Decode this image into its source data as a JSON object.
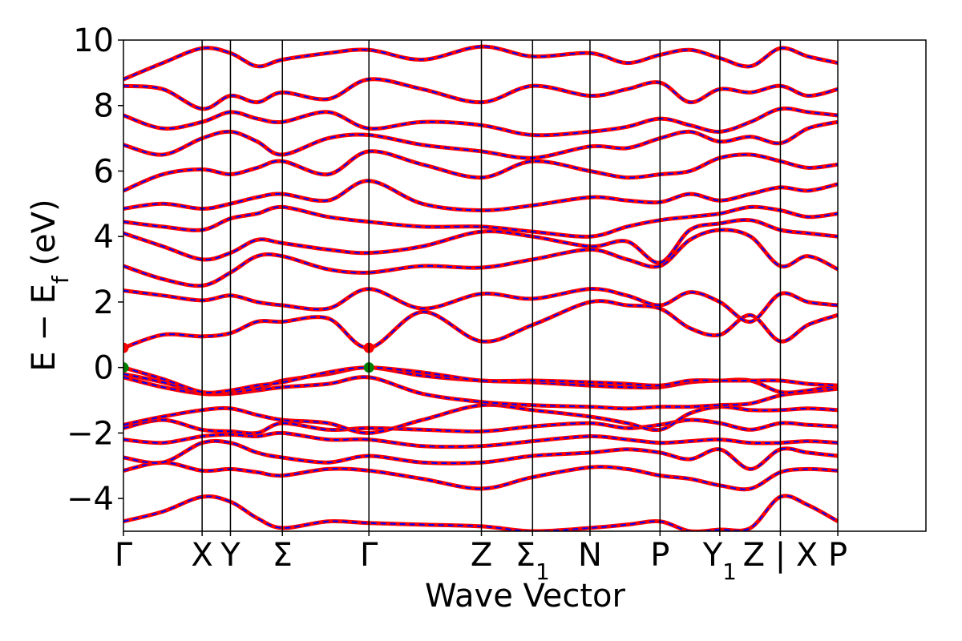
{
  "chart_data": {
    "type": "line",
    "title": "",
    "xlabel": "Wave Vector",
    "ylabel": "E − E",
    "ylabel_sub": "f",
    "ylabel_unit": " (eV)",
    "ylim": [
      -5,
      10
    ],
    "yticks": [
      -4,
      -2,
      0,
      2,
      4,
      6,
      8,
      10
    ],
    "ytick_labels": [
      "−4",
      "−2",
      "0",
      "2",
      "4",
      "6",
      "8",
      "10"
    ],
    "grid": false,
    "legend": "none",
    "path_length": 10.2,
    "kpoints": [
      {
        "label": "Γ",
        "sub": "",
        "pos": 0.0
      },
      {
        "label": "X",
        "sub": "",
        "pos": 1.0
      },
      {
        "label": "Y",
        "sub": "",
        "pos": 1.36
      },
      {
        "label": "Σ",
        "sub": "",
        "pos": 2.02
      },
      {
        "label": "Γ",
        "sub": "",
        "pos": 3.12
      },
      {
        "label": "Z",
        "sub": "",
        "pos": 4.55
      },
      {
        "label": "Σ",
        "sub": "1",
        "pos": 5.2
      },
      {
        "label": "N",
        "sub": "",
        "pos": 5.93
      },
      {
        "label": "P",
        "sub": "",
        "pos": 6.82
      },
      {
        "label": "Y",
        "sub": "1",
        "pos": 7.58
      },
      {
        "label": "Z | X",
        "sub": "",
        "pos": 8.35
      },
      {
        "label": "P",
        "sub": "",
        "pos": 9.08
      }
    ],
    "series": [
      {
        "color": "#ff0000",
        "style": "solid",
        "width": 5
      },
      {
        "color": "#0000ff",
        "style": "dashed",
        "width": 2
      }
    ],
    "band_x": [
      0,
      0.5,
      1.0,
      1.36,
      1.7,
      2.02,
      2.6,
      3.12,
      3.8,
      4.55,
      5.2,
      5.93,
      6.4,
      6.82,
      7.2,
      7.58,
      7.97,
      8.35,
      8.7,
      9.08
    ],
    "bands": [
      [
        -4.7,
        -4.4,
        -3.95,
        -4.1,
        -4.6,
        -4.9,
        -4.7,
        -4.75,
        -4.8,
        -4.85,
        -5.0,
        -4.9,
        -4.8,
        -4.7,
        -5.0,
        -4.95,
        -4.9,
        -3.95,
        -4.2,
        -4.7
      ],
      [
        -3.15,
        -2.9,
        -3.15,
        -3.1,
        -3.2,
        -3.3,
        -3.1,
        -3.15,
        -3.4,
        -3.7,
        -3.35,
        -3.05,
        -3.1,
        -3.3,
        -3.4,
        -3.6,
        -3.7,
        -3.2,
        -3.1,
        -3.15
      ],
      [
        -2.75,
        -2.9,
        -2.3,
        -2.3,
        -2.6,
        -2.75,
        -2.9,
        -2.7,
        -2.9,
        -2.9,
        -2.7,
        -2.6,
        -2.5,
        -2.6,
        -2.8,
        -2.5,
        -3.1,
        -2.5,
        -2.6,
        -2.7
      ],
      [
        -2.2,
        -2.3,
        -2.1,
        -2.05,
        -2.1,
        -2.0,
        -2.2,
        -2.2,
        -2.4,
        -2.4,
        -2.25,
        -2.1,
        -2.2,
        -2.3,
        -2.25,
        -2.2,
        -2.3,
        -2.3,
        -2.25,
        -2.3
      ],
      [
        -1.85,
        -1.6,
        -1.9,
        -1.95,
        -2.0,
        -1.7,
        -1.9,
        -1.85,
        -1.9,
        -1.95,
        -1.8,
        -1.7,
        -1.85,
        -1.75,
        -1.6,
        -1.7,
        -1.9,
        -1.7,
        -1.75,
        -1.8
      ],
      [
        -1.75,
        -1.5,
        -1.3,
        -1.25,
        -1.45,
        -1.6,
        -1.7,
        -2.0,
        -1.6,
        -1.15,
        -1.3,
        -1.5,
        -1.7,
        -1.9,
        -1.4,
        -1.2,
        -1.3,
        -1.3,
        -1.25,
        -1.3
      ],
      [
        -0.3,
        -0.6,
        -0.8,
        -0.8,
        -0.7,
        -0.6,
        -0.5,
        -0.3,
        -0.8,
        -1.05,
        -1.15,
        -1.2,
        -1.25,
        -1.2,
        -1.2,
        -1.15,
        -1.1,
        -0.85,
        -0.75,
        -0.65
      ],
      [
        -0.2,
        -0.45,
        -0.78,
        -0.75,
        -0.65,
        -0.4,
        -0.2,
        0.0,
        -0.25,
        -0.4,
        -0.45,
        -0.55,
        -0.6,
        -0.6,
        -0.45,
        -0.4,
        -0.4,
        -0.75,
        -0.7,
        -0.55
      ],
      [
        0.0,
        -0.35,
        -0.75,
        -0.7,
        -0.55,
        -0.45,
        -0.15,
        0.0,
        -0.15,
        -0.4,
        -0.4,
        -0.45,
        -0.5,
        -0.55,
        -0.4,
        -0.4,
        -0.4,
        -0.4,
        -0.5,
        -0.55
      ],
      [
        0.6,
        1.0,
        0.95,
        1.05,
        1.4,
        1.4,
        1.5,
        0.6,
        1.7,
        0.8,
        1.3,
        2.0,
        1.9,
        1.8,
        1.2,
        1.0,
        1.6,
        0.8,
        1.3,
        1.6
      ],
      [
        2.35,
        2.2,
        2.05,
        2.2,
        2.0,
        1.9,
        1.8,
        2.4,
        1.8,
        2.25,
        2.1,
        2.4,
        2.2,
        1.9,
        2.3,
        2.0,
        1.4,
        2.25,
        2.0,
        1.9
      ],
      [
        3.1,
        2.7,
        2.5,
        2.9,
        3.4,
        3.4,
        3.0,
        2.9,
        3.1,
        3.05,
        3.3,
        3.6,
        3.3,
        3.1,
        3.9,
        4.2,
        4.0,
        3.1,
        3.4,
        3.0
      ],
      [
        4.1,
        3.7,
        3.3,
        3.5,
        3.9,
        3.8,
        3.6,
        3.5,
        3.7,
        4.15,
        4.0,
        3.7,
        3.85,
        3.2,
        4.2,
        4.4,
        4.5,
        4.2,
        4.1,
        4.0
      ],
      [
        4.45,
        4.3,
        4.2,
        4.55,
        4.7,
        4.9,
        4.6,
        4.45,
        4.3,
        4.3,
        4.15,
        4.0,
        4.3,
        4.5,
        4.6,
        4.7,
        4.9,
        4.8,
        4.6,
        4.7
      ],
      [
        4.85,
        5.0,
        4.85,
        5.0,
        5.2,
        5.3,
        5.1,
        5.7,
        5.0,
        4.8,
        4.95,
        5.2,
        5.1,
        5.05,
        5.3,
        5.1,
        5.3,
        5.5,
        5.4,
        5.6
      ],
      [
        5.4,
        5.9,
        6.05,
        5.9,
        6.1,
        6.3,
        5.9,
        6.6,
        6.2,
        5.8,
        6.3,
        6.0,
        5.8,
        5.9,
        6.0,
        6.4,
        6.5,
        6.3,
        6.1,
        6.2
      ],
      [
        6.8,
        6.5,
        7.0,
        7.2,
        6.9,
        6.5,
        7.0,
        7.1,
        6.8,
        6.6,
        6.4,
        6.75,
        6.7,
        7.0,
        7.2,
        6.9,
        7.05,
        6.85,
        7.3,
        7.5
      ],
      [
        7.7,
        7.3,
        7.5,
        7.8,
        7.6,
        7.5,
        7.8,
        7.3,
        7.5,
        7.4,
        7.1,
        7.2,
        7.35,
        7.6,
        7.4,
        7.2,
        7.5,
        7.9,
        7.8,
        7.7
      ],
      [
        8.6,
        8.5,
        7.9,
        8.3,
        8.1,
        8.4,
        8.2,
        8.8,
        8.5,
        8.1,
        8.6,
        8.3,
        8.5,
        8.7,
        8.1,
        8.5,
        8.4,
        8.6,
        8.3,
        8.5
      ],
      [
        8.8,
        9.3,
        9.75,
        9.6,
        9.2,
        9.4,
        9.6,
        9.7,
        9.4,
        9.8,
        9.5,
        9.6,
        9.3,
        9.55,
        9.7,
        9.45,
        9.2,
        9.75,
        9.5,
        9.3
      ]
    ],
    "markers": [
      {
        "x": 0.0,
        "y": 0.6,
        "color": "#ff0000"
      },
      {
        "x": 0.0,
        "y": 0.0,
        "color": "#008000"
      },
      {
        "x": 3.12,
        "y": 0.6,
        "color": "#ff0000"
      },
      {
        "x": 3.12,
        "y": 0.0,
        "color": "#008000"
      }
    ]
  }
}
